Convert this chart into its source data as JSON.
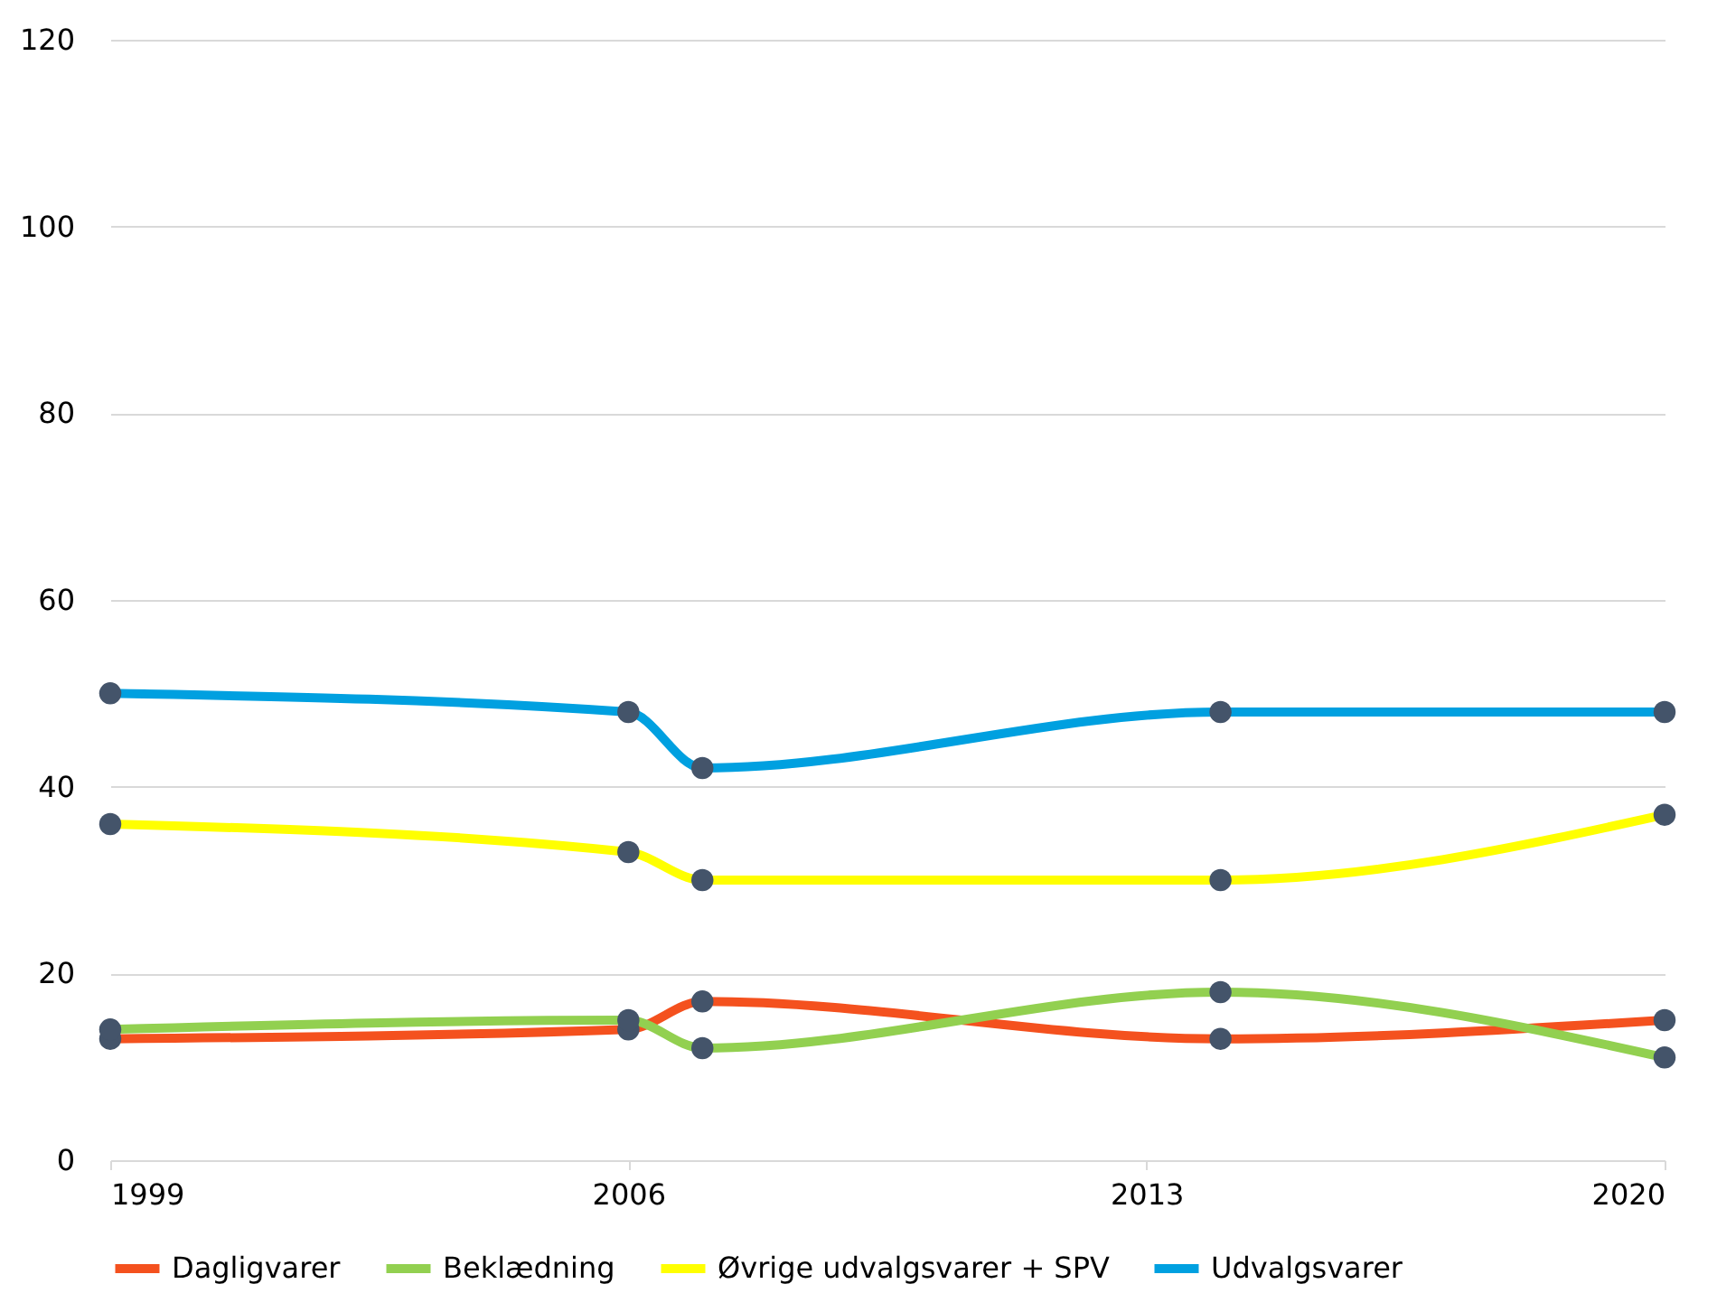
{
  "chart_data": {
    "type": "line",
    "x": [
      1999,
      2006,
      2007,
      2014,
      2020
    ],
    "xlim": [
      1999,
      2020
    ],
    "xticks": [
      1999,
      2006,
      2013,
      2020
    ],
    "ylim": [
      0,
      120
    ],
    "yticks": [
      0,
      20,
      40,
      60,
      80,
      100,
      120
    ],
    "grid": "y",
    "legend": "bottom",
    "marker": "circle",
    "series": [
      {
        "name": "Dagligvarer",
        "color": "#f4511e",
        "values": [
          13,
          14,
          17,
          13,
          15
        ]
      },
      {
        "name": "Beklædning",
        "color": "#92d050",
        "values": [
          14,
          15,
          12,
          18,
          11
        ]
      },
      {
        "name": "Øvrige udvalgsvarer + SPV",
        "color": "#ffff00",
        "values": [
          36,
          33,
          30,
          30,
          37
        ]
      },
      {
        "name": "Udvalgsvarer",
        "color": "#00a0e0",
        "values": [
          50,
          48,
          42,
          48,
          48
        ]
      }
    ]
  }
}
